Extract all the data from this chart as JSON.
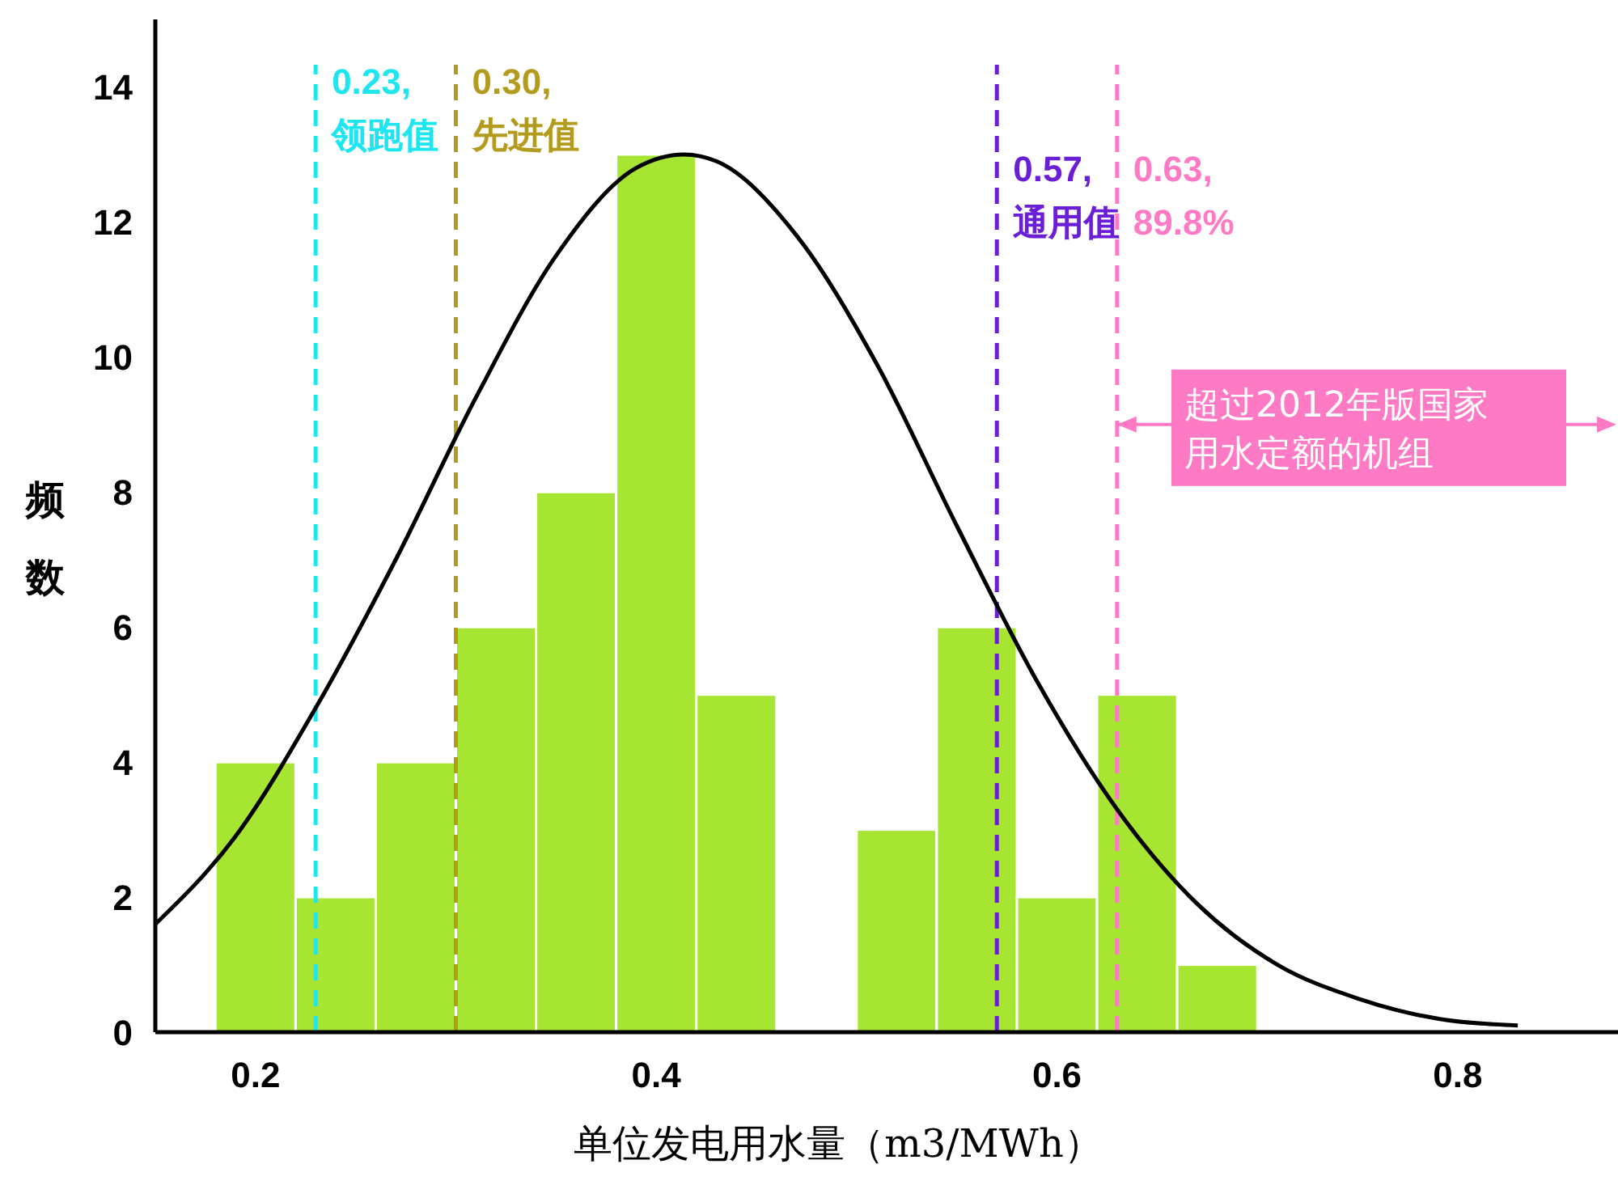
{
  "chart_data": {
    "type": "histogram",
    "xlabel": "单位发电用水量（m3/MWh）",
    "ylabel": "频数",
    "bins": [
      0.18,
      0.22,
      0.26,
      0.3,
      0.34,
      0.38,
      0.42,
      0.46,
      0.5,
      0.54,
      0.58,
      0.62,
      0.66,
      0.7
    ],
    "values": [
      4,
      2,
      4,
      6,
      8,
      13,
      5,
      0,
      3,
      6,
      2,
      5,
      1
    ],
    "color": "#a6e632",
    "series": [
      {
        "type": "line",
        "color": "#000000",
        "x": [
          0.15,
          0.19,
          0.23,
          0.27,
          0.31,
          0.35,
          0.39,
          0.414,
          0.43,
          0.47,
          0.51,
          0.55,
          0.59,
          0.63,
          0.67,
          0.71,
          0.75,
          0.79,
          0.83
        ],
        "values": [
          1.6,
          2.9,
          4.8,
          7.0,
          9.4,
          11.5,
          12.8,
          13.0,
          12.9,
          11.8,
          9.9,
          7.5,
          5.2,
          3.3,
          1.9,
          1.0,
          0.5,
          0.2,
          0.1
        ]
      }
    ],
    "xlim": [
      0.15,
      0.88
    ],
    "xticks": [
      0.2,
      0.4,
      0.6,
      0.8
    ],
    "ylim": [
      0,
      15
    ],
    "yticks": [
      0,
      2,
      4,
      6,
      8,
      10,
      12,
      14
    ],
    "ref_lines": [
      {
        "axis": "x",
        "value": 0.23,
        "label": "0.23,\n领跑值",
        "color": "#1ee6f0",
        "line_style": "dashed"
      },
      {
        "axis": "x",
        "value": 0.3,
        "label": "0.30,\n先进值",
        "color": "#b39b1e",
        "line_style": "dashed"
      },
      {
        "axis": "x",
        "value": 0.57,
        "label": "0.57,\n通用值",
        "color": "#6a1fd6",
        "line_style": "dashed"
      },
      {
        "axis": "x",
        "value": 0.63,
        "label": "0.63,\n89.8%",
        "color": "#ff7ac4",
        "line_style": "dashed"
      }
    ],
    "annotations": [
      {
        "text": "超过2012年版国家用水定额的机组",
        "x": 0.63,
        "y": 9
      }
    ],
    "grid": false
  }
}
